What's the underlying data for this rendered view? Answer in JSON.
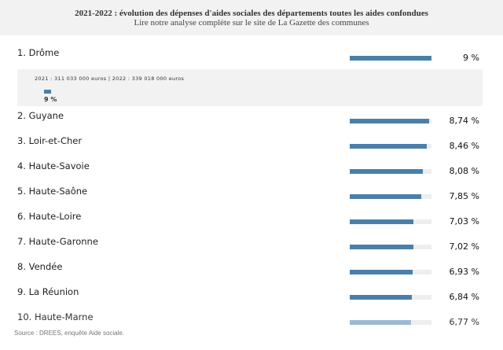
{
  "header": {
    "title": "2021-2022 : évolution des dépenses d'aides sociales des départements toutes les aides confondues",
    "subtitle": "Lire notre analyse complète sur le site de La Gazette des communes"
  },
  "detail": {
    "years_text": "2021 : 311 033 000 euros | 2022 : 339 018 000 euros",
    "value_label": "9 %"
  },
  "chart_data": {
    "type": "bar",
    "orientation": "horizontal",
    "categories": [
      "1. Drôme",
      "2. Guyane",
      "3. Loir-et-Cher",
      "4. Haute-Savoie",
      "5. Haute-Saône",
      "6. Haute-Loire",
      "7. Haute-Garonne",
      "8. Vendée",
      "9. La Réunion",
      "10. Haute-Marne"
    ],
    "values": [
      9,
      8.74,
      8.46,
      8.08,
      7.85,
      7.03,
      7.02,
      6.93,
      6.84,
      6.77
    ],
    "value_labels": [
      "9 %",
      "8,74 %",
      "8,46 %",
      "8,08 %",
      "7,85 %",
      "7,03 %",
      "7,02 %",
      "6,93 %",
      "6,84 %",
      "6,77 %"
    ],
    "xlim": [
      0,
      9
    ],
    "bar_color": "#4a7faa",
    "track_color": "#eeeeee"
  },
  "source": "Source : DREES, enquête Aide sociale."
}
